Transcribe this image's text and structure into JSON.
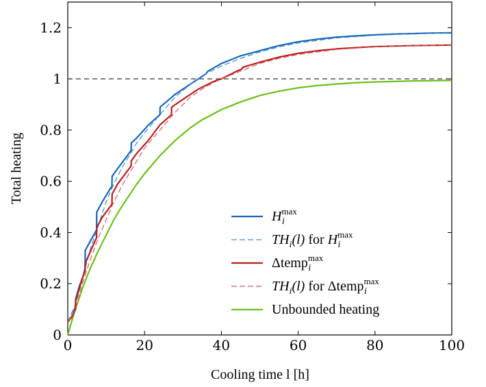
{
  "chart_data": {
    "type": "line",
    "xlabel": "Cooling time l [h]",
    "ylabel": "Total heating",
    "xlim": [
      0,
      100
    ],
    "ylim": [
      0,
      1.3
    ],
    "xticks": [
      0,
      20,
      40,
      60,
      80,
      100
    ],
    "yticks": [
      0,
      0.2,
      0.4,
      0.6,
      0.8,
      1,
      1.2
    ],
    "xtick_labels": [
      "0",
      "20",
      "40",
      "60",
      "80",
      "100"
    ],
    "ytick_labels": [
      "0",
      "0.2",
      "0.4",
      "0.6",
      "0.8",
      "1",
      "1.2"
    ],
    "reference_line": {
      "y": 1,
      "style": "dashed",
      "color": "#333333"
    },
    "legend_position": "lower-right",
    "series": [
      {
        "name": "H_i^max",
        "legend_label": "H",
        "legend_sub": "i",
        "legend_sup": "max",
        "style": "solid",
        "color": "#1565b6",
        "points": [
          [
            0,
            0.05
          ],
          [
            1,
            0.07
          ],
          [
            2,
            0.11
          ],
          [
            2.05,
            0.14
          ],
          [
            3,
            0.19
          ],
          [
            4,
            0.23
          ],
          [
            4.5,
            0.26
          ],
          [
            4.55,
            0.33
          ],
          [
            6,
            0.37
          ],
          [
            7.5,
            0.41
          ],
          [
            7.55,
            0.48
          ],
          [
            9,
            0.52
          ],
          [
            11,
            0.57
          ],
          [
            11.5,
            0.58
          ],
          [
            11.55,
            0.62
          ],
          [
            13,
            0.65
          ],
          [
            16,
            0.71
          ],
          [
            16.5,
            0.72
          ],
          [
            16.55,
            0.75
          ],
          [
            18,
            0.77
          ],
          [
            21,
            0.82
          ],
          [
            24,
            0.86
          ],
          [
            24.05,
            0.89
          ],
          [
            28,
            0.94
          ],
          [
            32,
            0.98
          ],
          [
            35,
            1.01
          ],
          [
            36,
            1.02
          ],
          [
            36.5,
            1.03
          ],
          [
            40,
            1.06
          ],
          [
            45,
            1.09
          ],
          [
            50,
            1.11
          ],
          [
            55,
            1.13
          ],
          [
            60,
            1.145
          ],
          [
            65,
            1.155
          ],
          [
            70,
            1.163
          ],
          [
            75,
            1.168
          ],
          [
            80,
            1.172
          ],
          [
            85,
            1.175
          ],
          [
            90,
            1.177
          ],
          [
            95,
            1.179
          ],
          [
            100,
            1.18
          ]
        ]
      },
      {
        "name": "TH_i(l) for H_i^max",
        "legend_prefix": "TH",
        "legend_sub": "i",
        "legend_paren": "(l)",
        "legend_mid": " for ",
        "legend_var": "H",
        "legend_var_sub": "i",
        "legend_var_sup": "max",
        "style": "dashed",
        "color": "#3c87d1",
        "points": [
          [
            0,
            0.05
          ],
          [
            2,
            0.12
          ],
          [
            4,
            0.23
          ],
          [
            6,
            0.34
          ],
          [
            8,
            0.43
          ],
          [
            10,
            0.52
          ],
          [
            12,
            0.59
          ],
          [
            14,
            0.65
          ],
          [
            16,
            0.7
          ],
          [
            18,
            0.75
          ],
          [
            20,
            0.79
          ],
          [
            24,
            0.86
          ],
          [
            28,
            0.93
          ],
          [
            32,
            0.98
          ],
          [
            36,
            1.02
          ],
          [
            40,
            1.05
          ],
          [
            45,
            1.08
          ],
          [
            50,
            1.105
          ],
          [
            55,
            1.125
          ],
          [
            60,
            1.14
          ],
          [
            70,
            1.16
          ],
          [
            80,
            1.17
          ],
          [
            90,
            1.177
          ],
          [
            100,
            1.18
          ]
        ]
      },
      {
        "name": "Δtemp_i^max",
        "legend_label": "Δtemp",
        "legend_sub": "i",
        "legend_sup": "max",
        "style": "solid",
        "color": "#b81d1d",
        "points": [
          [
            0,
            0.05
          ],
          [
            1,
            0.07
          ],
          [
            2,
            0.1
          ],
          [
            2.05,
            0.13
          ],
          [
            3,
            0.18
          ],
          [
            4,
            0.23
          ],
          [
            4.5,
            0.25
          ],
          [
            4.55,
            0.28
          ],
          [
            6,
            0.33
          ],
          [
            7.5,
            0.38
          ],
          [
            7.55,
            0.42
          ],
          [
            9,
            0.46
          ],
          [
            11,
            0.5
          ],
          [
            11.5,
            0.51
          ],
          [
            11.55,
            0.55
          ],
          [
            13,
            0.59
          ],
          [
            16,
            0.65
          ],
          [
            16.5,
            0.66
          ],
          [
            16.55,
            0.68
          ],
          [
            18,
            0.71
          ],
          [
            21,
            0.76
          ],
          [
            24,
            0.82
          ],
          [
            27,
            0.86
          ],
          [
            27.05,
            0.89
          ],
          [
            30,
            0.92
          ],
          [
            34,
            0.96
          ],
          [
            38,
            0.99
          ],
          [
            40,
            1.0
          ],
          [
            44,
            1.03
          ],
          [
            45.5,
            1.04
          ],
          [
            45.55,
            1.045
          ],
          [
            50,
            1.065
          ],
          [
            55,
            1.085
          ],
          [
            60,
            1.1
          ],
          [
            65,
            1.11
          ],
          [
            70,
            1.117
          ],
          [
            75,
            1.122
          ],
          [
            80,
            1.126
          ],
          [
            85,
            1.128
          ],
          [
            90,
            1.13
          ],
          [
            95,
            1.131
          ],
          [
            100,
            1.132
          ]
        ]
      },
      {
        "name": "TH_i(l) for Δtemp_i^max",
        "legend_prefix": "TH",
        "legend_sub": "i",
        "legend_paren": "(l)",
        "legend_mid": " for ",
        "legend_var": "Δtemp",
        "legend_var_sub": "i",
        "legend_var_sup": "max",
        "style": "dashed",
        "color": "#d35a5a",
        "points": [
          [
            0,
            0.05
          ],
          [
            2,
            0.1
          ],
          [
            4,
            0.21
          ],
          [
            6,
            0.3
          ],
          [
            8,
            0.38
          ],
          [
            10,
            0.45
          ],
          [
            12,
            0.52
          ],
          [
            14,
            0.58
          ],
          [
            16,
            0.63
          ],
          [
            18,
            0.68
          ],
          [
            20,
            0.73
          ],
          [
            24,
            0.8
          ],
          [
            28,
            0.87
          ],
          [
            32,
            0.93
          ],
          [
            36,
            0.97
          ],
          [
            40,
            1.0
          ],
          [
            45,
            1.03
          ],
          [
            50,
            1.06
          ],
          [
            55,
            1.08
          ],
          [
            60,
            1.095
          ],
          [
            70,
            1.115
          ],
          [
            80,
            1.125
          ],
          [
            90,
            1.13
          ],
          [
            100,
            1.132
          ]
        ]
      },
      {
        "name": "Unbounded heating",
        "legend_label": "Unbounded heating",
        "style": "solid",
        "color": "#6abf1a",
        "points": [
          [
            0,
            0
          ],
          [
            1,
            0.052
          ],
          [
            2,
            0.1
          ],
          [
            3,
            0.145
          ],
          [
            4,
            0.19
          ],
          [
            5,
            0.228
          ],
          [
            6,
            0.265
          ],
          [
            8,
            0.33
          ],
          [
            10,
            0.39
          ],
          [
            12,
            0.45
          ],
          [
            14,
            0.5
          ],
          [
            16,
            0.545
          ],
          [
            18,
            0.59
          ],
          [
            20,
            0.63
          ],
          [
            22,
            0.665
          ],
          [
            24,
            0.7
          ],
          [
            26,
            0.73
          ],
          [
            28,
            0.76
          ],
          [
            30,
            0.785
          ],
          [
            32,
            0.81
          ],
          [
            35,
            0.84
          ],
          [
            40,
            0.88
          ],
          [
            45,
            0.91
          ],
          [
            50,
            0.935
          ],
          [
            55,
            0.952
          ],
          [
            60,
            0.965
          ],
          [
            65,
            0.974
          ],
          [
            70,
            0.98
          ],
          [
            75,
            0.985
          ],
          [
            80,
            0.988
          ],
          [
            85,
            0.99
          ],
          [
            90,
            0.992
          ],
          [
            95,
            0.993
          ],
          [
            100,
            0.994
          ]
        ]
      }
    ]
  }
}
